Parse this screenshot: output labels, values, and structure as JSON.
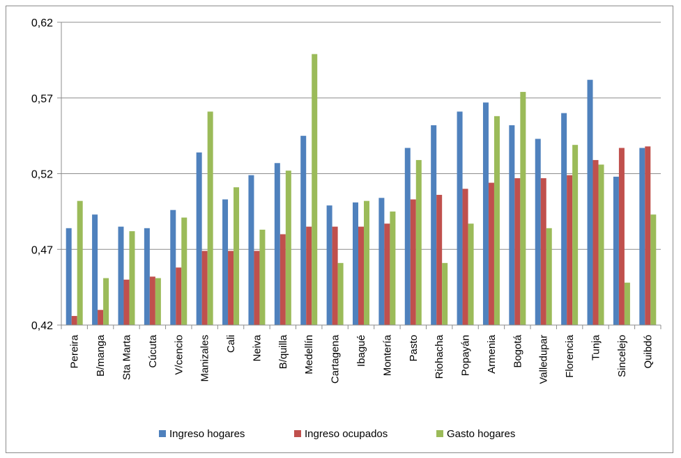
{
  "chart_data": {
    "type": "bar",
    "title": "",
    "xlabel": "",
    "ylabel": "",
    "ylim": [
      0.42,
      0.62
    ],
    "yticks": [
      "0,42",
      "0,47",
      "0,52",
      "0,57",
      "0,62"
    ],
    "ytick_values": [
      0.42,
      0.47,
      0.52,
      0.57,
      0.62
    ],
    "grid": true,
    "legend_position": "bottom",
    "categories": [
      "Pereira",
      "B/manga",
      "Sta Marta",
      "Cúcuta",
      "V/cencio",
      "Manizales",
      "Cali",
      "Neiva",
      "B/quilla",
      "Medellín",
      "Cartagena",
      "Ibagué",
      "Montería",
      "Pasto",
      "Riohacha",
      "Popayán",
      "Armenia",
      "Bogotá",
      "Valledupar",
      "Florencia",
      "Tunja",
      "Sincelejo",
      "Quibdó"
    ],
    "series": [
      {
        "name": "Ingreso hogares",
        "color": "#4f81bd",
        "values": [
          0.484,
          0.493,
          0.485,
          0.484,
          0.496,
          0.534,
          0.503,
          0.519,
          0.527,
          0.545,
          0.499,
          0.501,
          0.504,
          0.537,
          0.552,
          0.561,
          0.567,
          0.552,
          0.543,
          0.56,
          0.582,
          0.518,
          0.537
        ]
      },
      {
        "name": "Ingreso ocupados",
        "color": "#c0504d",
        "values": [
          0.426,
          0.43,
          0.45,
          0.452,
          0.458,
          0.469,
          0.469,
          0.469,
          0.48,
          0.485,
          0.485,
          0.485,
          0.487,
          0.503,
          0.506,
          0.51,
          0.514,
          0.517,
          0.517,
          0.519,
          0.529,
          0.537,
          0.538
        ]
      },
      {
        "name": "Gasto hogares",
        "color": "#9bbb59",
        "values": [
          0.502,
          0.451,
          0.482,
          0.451,
          0.491,
          0.561,
          0.511,
          0.483,
          0.522,
          0.599,
          0.461,
          0.502,
          0.495,
          0.529,
          0.461,
          0.487,
          0.558,
          0.574,
          0.484,
          0.539,
          0.526,
          0.448,
          0.493
        ]
      }
    ]
  }
}
